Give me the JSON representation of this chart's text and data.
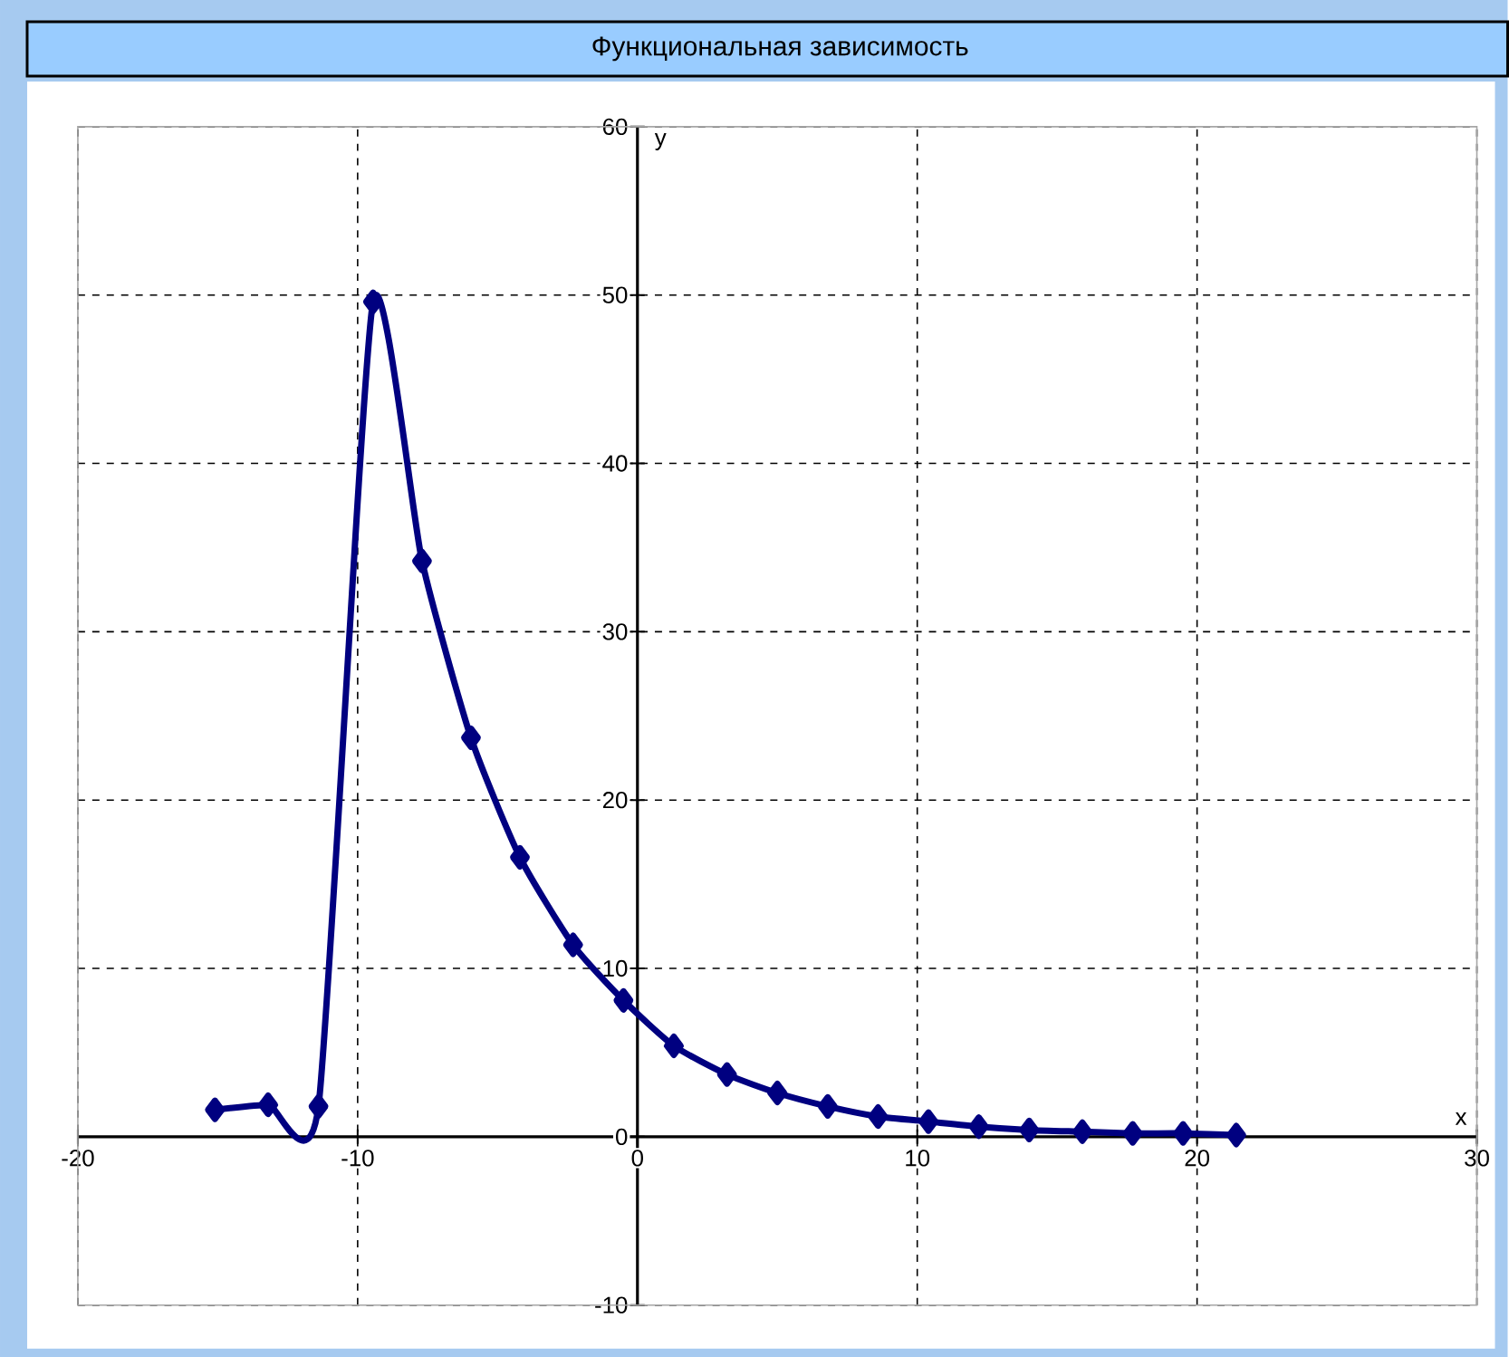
{
  "chart_data": {
    "type": "line",
    "title": "Функциональная зависимость",
    "xlabel": "x",
    "ylabel": "y",
    "xlim": [
      -20,
      30
    ],
    "ylim": [
      -10,
      60
    ],
    "xticks": [
      -20,
      -10,
      0,
      10,
      20,
      30
    ],
    "yticks": [
      -10,
      0,
      10,
      20,
      30,
      40,
      50,
      60
    ],
    "grid": true,
    "marker": "diamond",
    "line_style": "solid",
    "series": [
      {
        "color": "#000080",
        "x": [
          -15.1,
          -13.2,
          -11.4,
          -9.45,
          -7.7,
          -5.95,
          -4.2,
          -2.3,
          -0.5,
          1.3,
          3.2,
          5.0,
          6.8,
          8.6,
          10.4,
          12.2,
          14.0,
          15.9,
          17.7,
          19.5,
          21.4
        ],
        "values": [
          1.6,
          1.9,
          1.8,
          49.6,
          34.2,
          23.7,
          16.6,
          11.4,
          8.1,
          5.4,
          3.7,
          2.6,
          1.8,
          1.2,
          0.9,
          0.6,
          0.4,
          0.3,
          0.2,
          0.2,
          0.1
        ]
      }
    ]
  }
}
